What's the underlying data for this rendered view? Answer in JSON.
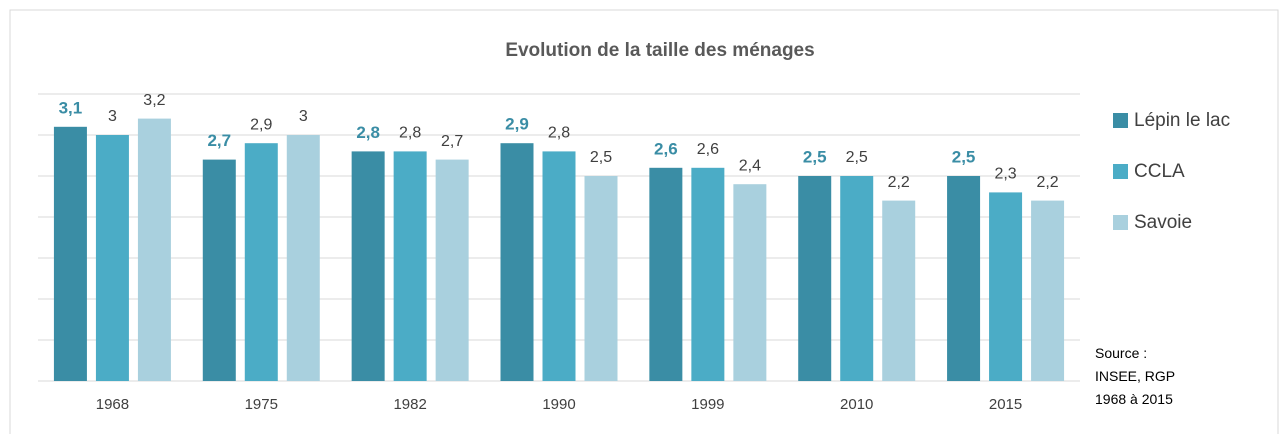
{
  "chart_data": {
    "type": "bar",
    "title": "Evolution de la taille des ménages",
    "categories": [
      "1968",
      "1975",
      "1982",
      "1990",
      "1999",
      "2010",
      "2015"
    ],
    "series": [
      {
        "name": "Lépin le lac",
        "color": "#3a8da5",
        "values": [
          3.1,
          2.7,
          2.8,
          2.9,
          2.6,
          2.5,
          2.5
        ],
        "value_labels": [
          "3,1",
          "2,7",
          "2,8",
          "2,9",
          "2,6",
          "2,5",
          "2,5"
        ]
      },
      {
        "name": "CCLA",
        "color": "#4bacc6",
        "values": [
          3,
          2.9,
          2.8,
          2.8,
          2.6,
          2.5,
          2.3
        ],
        "value_labels": [
          "3",
          "2,9",
          "2,8",
          "2,8",
          "2,6",
          "2,5",
          "2,3"
        ]
      },
      {
        "name": "Savoie",
        "color": "#a9d0de",
        "values": [
          3.2,
          3,
          2.7,
          2.5,
          2.4,
          2.2,
          2.2
        ],
        "value_labels": [
          "3,2",
          "3",
          "2,7",
          "2,5",
          "2,4",
          "2,2",
          "2,2"
        ]
      }
    ],
    "ylim": [
      0,
      3.5
    ],
    "yticks": [
      0,
      0.5,
      1,
      1.5,
      2,
      2.5,
      3,
      3.5
    ],
    "grid": true,
    "legend": "right",
    "source": "Source : INSEE, RGP 1968 à 2015"
  }
}
